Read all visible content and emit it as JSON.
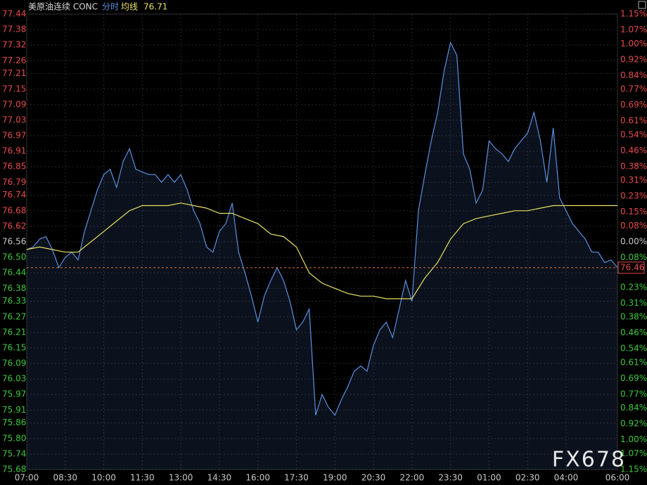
{
  "chart_data": {
    "type": "line",
    "symbol": "美原油连续 CONC",
    "mode_label": "分时",
    "avg_label": "均线",
    "avg_value": "76.71",
    "watermark": "FX678",
    "last_price": 76.46,
    "xlim": [
      "07:00",
      "06:00"
    ],
    "xticks": [
      "07:00",
      "08:30",
      "10:00",
      "11:30",
      "13:00",
      "14:30",
      "16:00",
      "17:30",
      "19:00",
      "20:30",
      "22:00",
      "23:30",
      "01:00",
      "02:30",
      "04:00",
      "06:00"
    ],
    "ylim": [
      75.68,
      77.44
    ],
    "yticks": [
      77.44,
      77.38,
      77.32,
      77.26,
      77.21,
      77.15,
      77.09,
      77.03,
      76.97,
      76.91,
      76.85,
      76.79,
      76.74,
      76.68,
      76.62,
      76.56,
      {
        "value": 76.5,
        "label": "76.50"
      },
      76.44,
      76.38,
      76.33,
      76.27,
      76.21,
      76.15,
      76.09,
      76.03,
      75.97,
      75.91,
      75.86,
      {
        "value": 75.8,
        "label": "75.80"
      },
      75.74,
      75.68
    ],
    "y2lim": [
      -1.15,
      1.15
    ],
    "y2ticks": [
      {
        "value": 1.15,
        "label": "1.15%"
      },
      {
        "value": 1.07,
        "label": "1.07%"
      },
      {
        "value": 1.0,
        "label": "1.00%"
      },
      {
        "value": 0.92,
        "label": "0.92%"
      },
      {
        "value": 0.84,
        "label": "0.84%"
      },
      {
        "value": 0.77,
        "label": "0.77%"
      },
      {
        "value": 0.69,
        "label": "0.69%"
      },
      {
        "value": 0.61,
        "label": "0.61%"
      },
      {
        "value": 0.54,
        "label": "0.54%"
      },
      {
        "value": 0.46,
        "label": "0.46%"
      },
      {
        "value": 0.38,
        "label": "0.38%"
      },
      {
        "value": 0.31,
        "label": "0.31%"
      },
      {
        "value": 0.23,
        "label": "0.23%"
      },
      {
        "value": 0.15,
        "label": "0.15%"
      },
      {
        "value": 0.08,
        "label": "0.08%"
      },
      {
        "value": 0,
        "label": "0.00%"
      },
      {
        "value": -0.08,
        "label": "0.08%"
      },
      {
        "value": -0.23,
        "label": "0.23%"
      },
      {
        "value": -0.31,
        "label": "0.31%"
      },
      {
        "value": -0.38,
        "label": "0.38%"
      },
      {
        "value": -0.46,
        "label": "0.46%"
      },
      {
        "value": -0.54,
        "label": "0.54%"
      },
      {
        "value": -0.61,
        "label": "0.61%"
      },
      {
        "value": -0.69,
        "label": "0.69%"
      },
      {
        "value": -0.77,
        "label": "0.77%"
      },
      {
        "value": -0.84,
        "label": "0.84%"
      },
      {
        "value": -0.92,
        "label": "0.92%"
      },
      {
        "value": -1.0,
        "label": "1.00%"
      },
      {
        "value": -1.07,
        "label": "1.07%"
      },
      {
        "value": -1.15,
        "label": "1.15%"
      }
    ],
    "grid": true,
    "series": [
      {
        "color": "#5b8fe0",
        "x": [
          "07:00",
          "07:15",
          "07:30",
          "07:45",
          "08:00",
          "08:15",
          "08:30",
          "08:45",
          "09:00",
          "09:15",
          "09:30",
          "09:45",
          "10:00",
          "10:15",
          "10:30",
          "10:45",
          "11:00",
          "11:15",
          "11:30",
          "11:45",
          "12:00",
          "12:15",
          "12:30",
          "12:45",
          "13:00",
          "13:15",
          "13:30",
          "13:45",
          "14:00",
          "14:15",
          "14:30",
          "14:45",
          "15:00",
          "15:15",
          "15:30",
          "15:45",
          "16:00",
          "16:15",
          "16:30",
          "16:45",
          "17:00",
          "17:15",
          "17:30",
          "17:45",
          "18:00",
          "18:15",
          "18:30",
          "18:45",
          "19:00",
          "19:15",
          "19:30",
          "19:45",
          "20:00",
          "20:15",
          "20:30",
          "20:45",
          "21:00",
          "21:15",
          "21:30",
          "21:45",
          "22:00",
          "22:15",
          "22:30",
          "22:45",
          "23:00",
          "23:15",
          "23:30",
          "23:45",
          "00:00",
          "00:15",
          "00:30",
          "00:45",
          "01:00",
          "01:15",
          "01:30",
          "01:45",
          "02:00",
          "02:15",
          "02:30",
          "02:45",
          "03:00",
          "03:15",
          "03:30",
          "03:45",
          "04:00",
          "04:15",
          "04:30",
          "04:45",
          "05:00",
          "05:15",
          "05:30",
          "05:45",
          "06:00"
        ],
        "values": [
          76.53,
          76.54,
          76.57,
          76.58,
          76.53,
          76.46,
          76.5,
          76.52,
          76.49,
          76.6,
          76.68,
          76.76,
          76.82,
          76.84,
          76.77,
          76.87,
          76.92,
          76.84,
          76.83,
          76.82,
          76.82,
          76.79,
          76.82,
          76.79,
          76.82,
          76.76,
          76.68,
          76.63,
          76.54,
          76.52,
          76.6,
          76.63,
          76.71,
          76.52,
          76.44,
          76.35,
          76.25,
          76.35,
          76.41,
          76.46,
          76.41,
          76.33,
          76.22,
          76.25,
          76.3,
          75.89,
          75.97,
          75.92,
          75.89,
          75.95,
          76.0,
          76.06,
          76.08,
          76.06,
          76.16,
          76.22,
          76.25,
          76.19,
          76.3,
          76.41,
          76.33,
          76.68,
          76.82,
          76.95,
          77.06,
          77.22,
          77.33,
          77.28,
          76.9,
          76.84,
          76.71,
          76.76,
          76.95,
          76.92,
          76.9,
          76.87,
          76.92,
          76.95,
          76.98,
          77.06,
          76.95,
          76.79,
          77.0,
          76.73,
          76.68,
          76.63,
          76.6,
          76.57,
          76.52,
          76.52,
          76.48,
          76.49,
          76.46
        ]
      },
      {
        "color": "#e8e060",
        "x": [
          "07:00",
          "07:30",
          "08:00",
          "08:30",
          "09:00",
          "09:30",
          "10:00",
          "10:30",
          "11:00",
          "11:30",
          "12:00",
          "12:30",
          "13:00",
          "13:30",
          "14:00",
          "14:30",
          "15:00",
          "15:30",
          "16:00",
          "16:30",
          "17:00",
          "17:30",
          "18:00",
          "18:30",
          "19:00",
          "19:30",
          "20:00",
          "20:30",
          "21:00",
          "21:30",
          "22:00",
          "22:30",
          "23:00",
          "23:30",
          "00:00",
          "00:30",
          "01:00",
          "01:30",
          "02:00",
          "02:30",
          "03:00",
          "03:30",
          "04:00",
          "06:00"
        ],
        "values": [
          76.53,
          76.54,
          76.53,
          76.52,
          76.52,
          76.56,
          76.6,
          76.64,
          76.68,
          76.7,
          76.7,
          76.7,
          76.71,
          76.7,
          76.69,
          76.67,
          76.67,
          76.65,
          76.63,
          76.59,
          76.58,
          76.54,
          76.44,
          76.4,
          76.38,
          76.36,
          76.35,
          76.35,
          76.34,
          76.34,
          76.34,
          76.42,
          76.48,
          76.57,
          76.63,
          76.65,
          76.66,
          76.67,
          76.68,
          76.68,
          76.69,
          76.7,
          76.7,
          76.7
        ]
      }
    ]
  }
}
